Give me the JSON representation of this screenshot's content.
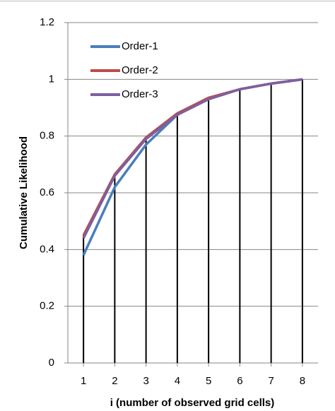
{
  "chart_data": {
    "type": "line",
    "x_label": "i (number of observed grid cells)",
    "y_label": "Cumulative Likelihood",
    "x": [
      1,
      2,
      3,
      4,
      5,
      6,
      7,
      8
    ],
    "xlim": [
      0.5,
      8.5
    ],
    "xticks": [
      1,
      2,
      3,
      4,
      5,
      6,
      7,
      8
    ],
    "ylim": [
      0,
      1.2
    ],
    "yticks": [
      0,
      0.2,
      0.4,
      0.6,
      0.8,
      1,
      1.2
    ],
    "grid": true,
    "drop_lines": true,
    "legend": "upper-left",
    "series": [
      {
        "name": "Order-1",
        "color": "#4a7ebb",
        "values": [
          0.38,
          0.62,
          0.77,
          0.875,
          0.93,
          0.965,
          0.985,
          1.0
        ]
      },
      {
        "name": "Order-2",
        "color": "#be4b48",
        "values": [
          0.45,
          0.665,
          0.795,
          0.88,
          0.935,
          0.965,
          0.985,
          1.0
        ]
      },
      {
        "name": "Order-3",
        "color": "#7d5fa0",
        "values": [
          0.44,
          0.66,
          0.79,
          0.875,
          0.93,
          0.965,
          0.985,
          1.0
        ]
      }
    ]
  }
}
